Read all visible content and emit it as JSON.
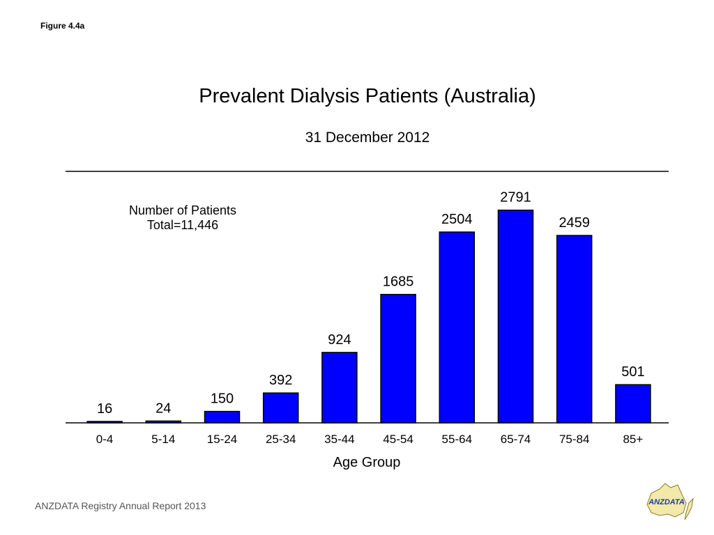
{
  "figure_label": "Figure 4.4a",
  "footer_text": "ANZDATA Registry Annual Report 2013",
  "logo_text": "ANZDATA",
  "colors": {
    "bar": "#0000ff",
    "bar_outline": "#000000"
  },
  "chart_data": {
    "type": "bar",
    "title": "Prevalent Dialysis Patients (Australia)",
    "subtitle": "31 December 2012",
    "annotation_line1": "Number of Patients",
    "annotation_line2": "Total=11,446",
    "xlabel": "Age Group",
    "ylabel": "",
    "categories": [
      "0-4",
      "5-14",
      "15-24",
      "25-34",
      "35-44",
      "45-54",
      "55-64",
      "65-74",
      "75-84",
      "85+"
    ],
    "values": [
      16,
      24,
      150,
      392,
      924,
      1685,
      2504,
      2791,
      2459,
      501
    ],
    "ylim": [
      0,
      3300
    ],
    "grid": false,
    "legend": "none",
    "data_labels": true
  }
}
